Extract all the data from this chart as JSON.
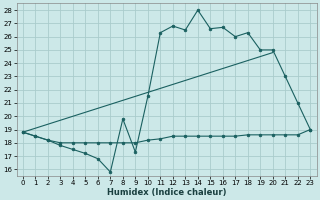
{
  "title": "",
  "xlabel": "Humidex (Indice chaleur)",
  "ylabel": "",
  "bg_color": "#cce8e8",
  "grid_color": "#aacccc",
  "line_color": "#1a6060",
  "xlim": [
    -0.5,
    23.5
  ],
  "ylim": [
    15.5,
    28.5
  ],
  "xticks": [
    0,
    1,
    2,
    3,
    4,
    5,
    6,
    7,
    8,
    9,
    10,
    11,
    12,
    13,
    14,
    15,
    16,
    17,
    18,
    19,
    20,
    21,
    22,
    23
  ],
  "yticks": [
    16,
    17,
    18,
    19,
    20,
    21,
    22,
    23,
    24,
    25,
    26,
    27,
    28
  ],
  "line1_x": [
    0,
    1,
    2,
    3,
    4,
    5,
    6,
    7,
    8,
    9,
    10,
    11,
    12,
    13,
    14,
    15,
    16,
    17,
    18,
    19,
    20,
    21,
    22,
    23
  ],
  "line1_y": [
    18.8,
    18.5,
    18.2,
    17.8,
    17.5,
    17.2,
    16.8,
    15.8,
    19.8,
    17.3,
    21.5,
    26.3,
    26.8,
    26.5,
    28.0,
    26.6,
    26.7,
    26.0,
    26.3,
    25.0,
    25.0,
    23.0,
    21.0,
    19.0
  ],
  "line2_x": [
    0,
    1,
    2,
    3,
    4,
    5,
    6,
    7,
    8,
    9,
    10,
    11,
    12,
    13,
    14,
    15,
    16,
    17,
    18,
    19,
    20,
    21,
    22,
    23
  ],
  "line2_y": [
    18.8,
    18.5,
    18.2,
    18.0,
    18.0,
    18.0,
    18.0,
    18.0,
    18.0,
    18.0,
    18.2,
    18.3,
    18.5,
    18.5,
    18.5,
    18.5,
    18.5,
    18.5,
    18.6,
    18.6,
    18.6,
    18.6,
    18.6,
    19.0
  ],
  "trend_x": [
    0,
    20
  ],
  "trend_y": [
    18.8,
    24.8
  ]
}
